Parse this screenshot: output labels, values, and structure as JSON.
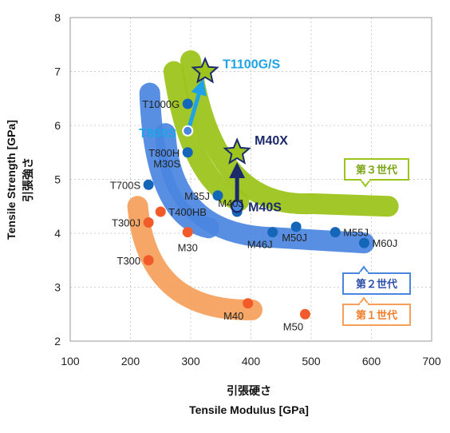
{
  "chart_data": {
    "type": "scatter",
    "title": "",
    "xlabel": [
      "引張硬さ",
      "Tensile Modulus [GPa]"
    ],
    "ylabel": [
      "Tensile Strength [GPa]",
      "引張強さ"
    ],
    "xlim": [
      100,
      700
    ],
    "ylim": [
      2,
      8
    ],
    "xticks": [
      100,
      200,
      300,
      400,
      500,
      600,
      700
    ],
    "yticks": [
      2,
      3,
      4,
      5,
      6,
      7,
      8
    ],
    "grid": true,
    "colors": {
      "gen1": "#f5a05a",
      "gen2": "#4a86e0",
      "gen3": "#9dc41c",
      "orange_point": "#f15a29",
      "blue_point": "#1466b8",
      "star": "#9dc41c",
      "highlight_blue": "#1fa3e6",
      "highlight_navy": "#1b2a6b"
    },
    "series": [
      {
        "name": "第1世代",
        "points": [
          {
            "label": "T300",
            "x": 230,
            "y": 3.5
          },
          {
            "label": "T300J",
            "x": 230,
            "y": 4.2
          },
          {
            "label": "T400HB",
            "x": 250,
            "y": 4.4
          },
          {
            "label": "M30",
            "x": 295,
            "y": 4.02
          },
          {
            "label": "M40",
            "x": 395,
            "y": 2.7
          },
          {
            "label": "M50",
            "x": 490,
            "y": 2.5
          }
        ]
      },
      {
        "name": "第2世代",
        "points": [
          {
            "label": "T700S",
            "x": 230,
            "y": 4.9
          },
          {
            "label": "T1000G",
            "x": 295,
            "y": 6.4
          },
          {
            "label": "T800S",
            "x": 295,
            "y": 5.9
          },
          {
            "label": "T800H",
            "x": 295,
            "y": 5.5
          },
          {
            "label": "M35J",
            "x": 345,
            "y": 4.7
          },
          {
            "label": "M40J",
            "x": 377,
            "y": 4.4
          },
          {
            "label": "M40S",
            "x": 377,
            "y": 4.5
          },
          {
            "label": "M46J",
            "x": 436,
            "y": 4.02
          },
          {
            "label": "M50J",
            "x": 475,
            "y": 4.12
          },
          {
            "label": "M55J",
            "x": 540,
            "y": 4.02
          },
          {
            "label": "M60J",
            "x": 588,
            "y": 3.82
          }
        ]
      },
      {
        "name": "第3世代",
        "points": [
          {
            "label": "T1100G/S",
            "x": 324,
            "y": 7.0
          },
          {
            "label": "M40X",
            "x": 377,
            "y": 5.5
          }
        ]
      }
    ],
    "extra_labels": [
      "M30S"
    ],
    "arrows": [
      {
        "from": "T800S",
        "to": "T1100G/S"
      },
      {
        "from": "M40S",
        "to": "M40X"
      }
    ],
    "generation_labels": [
      "第３世代",
      "第２世代",
      "第１世代"
    ]
  }
}
